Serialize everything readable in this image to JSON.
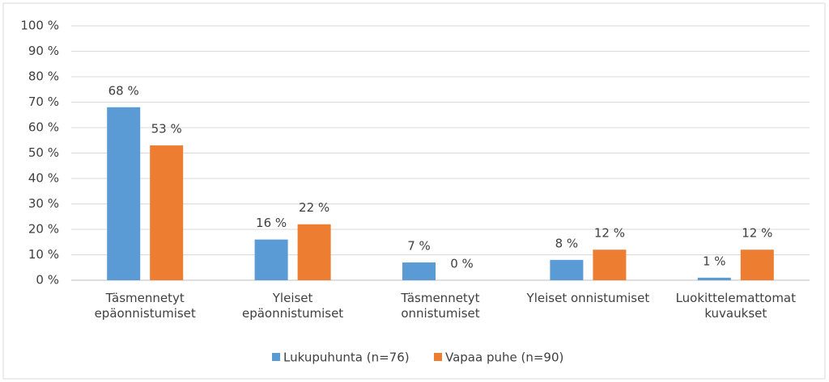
{
  "chart_data": {
    "type": "bar",
    "categories": [
      "Täsmennetyt epäonnistumiset",
      "Yleiset epäonnistumiset",
      "Täsmennetyt onnistumiset",
      "Yleiset onnistumiset",
      "Luokittelemattomat kuvaukset"
    ],
    "series": [
      {
        "name": "Lukupuhunta (n=76)",
        "color": "#5b9bd5",
        "values": [
          68,
          16,
          7,
          8,
          1
        ],
        "value_labels": [
          "68 %",
          "16 %",
          "7 %",
          "8 %",
          "1 %"
        ]
      },
      {
        "name": "Vapaa puhe (n=90)",
        "color": "#ed7d31",
        "values": [
          53,
          22,
          0,
          12,
          12
        ],
        "value_labels": [
          "53 %",
          "22 %",
          "0 %",
          "12 %",
          "12 %"
        ]
      }
    ],
    "ylim": [
      0,
      100
    ],
    "yticks": [
      {
        "value": 0,
        "label": "0 %"
      },
      {
        "value": 10,
        "label": "10 %"
      },
      {
        "value": 20,
        "label": "20 %"
      },
      {
        "value": 30,
        "label": "30 %"
      },
      {
        "value": 40,
        "label": "40 %"
      },
      {
        "value": 50,
        "label": "50 %"
      },
      {
        "value": 60,
        "label": "60 %"
      },
      {
        "value": 70,
        "label": "70 %"
      },
      {
        "value": 80,
        "label": "80 %"
      },
      {
        "value": 90,
        "label": "90 %"
      },
      {
        "value": 100,
        "label": "100 %"
      }
    ],
    "grid": true,
    "legend": "bottom"
  }
}
